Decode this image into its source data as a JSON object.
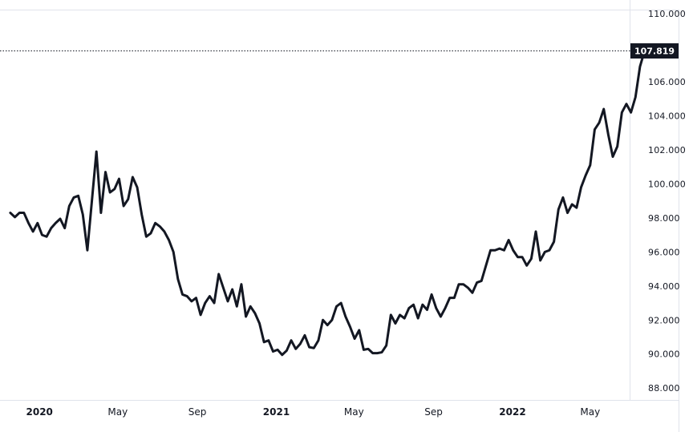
{
  "chart_data": {
    "type": "line",
    "title": "",
    "xlabel": "",
    "ylabel": "",
    "x_start": "2019-11",
    "x_end": "2022-07",
    "ylim": [
      87.3,
      110.2
    ],
    "y_ticks": [
      "88.000",
      "90.000",
      "92.000",
      "94.000",
      "96.000",
      "98.000",
      "100.000",
      "102.000",
      "104.000",
      "106.000",
      "110.000"
    ],
    "x_ticks": [
      {
        "label": "2020",
        "date": "2020-01",
        "year": true
      },
      {
        "label": "May",
        "date": "2020-05",
        "year": false
      },
      {
        "label": "Sep",
        "date": "2020-09",
        "year": false
      },
      {
        "label": "2021",
        "date": "2021-01",
        "year": true
      },
      {
        "label": "May",
        "date": "2021-05",
        "year": false
      },
      {
        "label": "Sep",
        "date": "2021-09",
        "year": false
      },
      {
        "label": "2022",
        "date": "2022-01",
        "year": true
      },
      {
        "label": "May",
        "date": "2022-05",
        "year": false
      }
    ],
    "last_value": 107.819,
    "last_value_label": "107.819",
    "line_color": "#131722",
    "grid": false,
    "series": [
      {
        "values": [
          [
            "2019-11-17",
            98.3
          ],
          [
            "2019-11-24",
            98.05
          ],
          [
            "2019-12-01",
            98.3
          ],
          [
            "2019-12-08",
            98.3
          ],
          [
            "2019-12-15",
            97.7
          ],
          [
            "2019-12-22",
            97.2
          ],
          [
            "2019-12-29",
            97.7
          ],
          [
            "2020-01-05",
            97.0
          ],
          [
            "2020-01-12",
            96.9
          ],
          [
            "2020-01-19",
            97.4
          ],
          [
            "2020-01-26",
            97.7
          ],
          [
            "2020-02-02",
            97.95
          ],
          [
            "2020-02-09",
            97.4
          ],
          [
            "2020-02-16",
            98.7
          ],
          [
            "2020-02-23",
            99.2
          ],
          [
            "2020-03-01",
            99.3
          ],
          [
            "2020-03-08",
            98.2
          ],
          [
            "2020-03-15",
            96.1
          ],
          [
            "2020-03-22",
            99.0
          ],
          [
            "2020-03-29",
            101.9
          ],
          [
            "2020-04-05",
            98.3
          ],
          [
            "2020-04-12",
            100.7
          ],
          [
            "2020-04-19",
            99.5
          ],
          [
            "2020-04-26",
            99.7
          ],
          [
            "2020-05-03",
            100.3
          ],
          [
            "2020-05-10",
            98.7
          ],
          [
            "2020-05-17",
            99.1
          ],
          [
            "2020-05-24",
            100.4
          ],
          [
            "2020-05-31",
            99.8
          ],
          [
            "2020-06-07",
            98.2
          ],
          [
            "2020-06-14",
            96.9
          ],
          [
            "2020-06-21",
            97.1
          ],
          [
            "2020-06-28",
            97.7
          ],
          [
            "2020-07-05",
            97.5
          ],
          [
            "2020-07-12",
            97.2
          ],
          [
            "2020-07-19",
            96.7
          ],
          [
            "2020-07-26",
            96.0
          ],
          [
            "2020-08-02",
            94.4
          ],
          [
            "2020-08-09",
            93.5
          ],
          [
            "2020-08-16",
            93.4
          ],
          [
            "2020-08-23",
            93.1
          ],
          [
            "2020-08-30",
            93.3
          ],
          [
            "2020-09-06",
            92.3
          ],
          [
            "2020-09-13",
            93.0
          ],
          [
            "2020-09-20",
            93.4
          ],
          [
            "2020-09-27",
            93.0
          ],
          [
            "2020-10-04",
            94.7
          ],
          [
            "2020-10-11",
            93.9
          ],
          [
            "2020-10-18",
            93.1
          ],
          [
            "2020-10-25",
            93.8
          ],
          [
            "2020-11-01",
            92.8
          ],
          [
            "2020-11-08",
            94.1
          ],
          [
            "2020-11-15",
            92.2
          ],
          [
            "2020-11-22",
            92.8
          ],
          [
            "2020-11-29",
            92.4
          ],
          [
            "2020-12-06",
            91.8
          ],
          [
            "2020-12-13",
            90.7
          ],
          [
            "2020-12-20",
            90.8
          ],
          [
            "2020-12-27",
            90.15
          ],
          [
            "2021-01-03",
            90.25
          ],
          [
            "2021-01-10",
            89.95
          ],
          [
            "2021-01-17",
            90.2
          ],
          [
            "2021-01-24",
            90.8
          ],
          [
            "2021-01-31",
            90.3
          ],
          [
            "2021-02-07",
            90.6
          ],
          [
            "2021-02-14",
            91.1
          ],
          [
            "2021-02-21",
            90.4
          ],
          [
            "2021-02-28",
            90.35
          ],
          [
            "2021-03-07",
            90.8
          ],
          [
            "2021-03-14",
            92.0
          ],
          [
            "2021-03-21",
            91.7
          ],
          [
            "2021-03-28",
            92.0
          ],
          [
            "2021-04-04",
            92.8
          ],
          [
            "2021-04-11",
            93.0
          ],
          [
            "2021-04-18",
            92.2
          ],
          [
            "2021-04-25",
            91.6
          ],
          [
            "2021-05-02",
            90.9
          ],
          [
            "2021-05-09",
            91.4
          ],
          [
            "2021-05-16",
            90.25
          ],
          [
            "2021-05-23",
            90.3
          ],
          [
            "2021-05-30",
            90.05
          ],
          [
            "2021-06-06",
            90.05
          ],
          [
            "2021-06-13",
            90.1
          ],
          [
            "2021-06-20",
            90.5
          ],
          [
            "2021-06-27",
            92.3
          ],
          [
            "2021-07-04",
            91.8
          ],
          [
            "2021-07-11",
            92.3
          ],
          [
            "2021-07-18",
            92.1
          ],
          [
            "2021-07-25",
            92.7
          ],
          [
            "2021-08-01",
            92.9
          ],
          [
            "2021-08-08",
            92.1
          ],
          [
            "2021-08-15",
            92.9
          ],
          [
            "2021-08-22",
            92.6
          ],
          [
            "2021-08-29",
            93.5
          ],
          [
            "2021-09-05",
            92.7
          ],
          [
            "2021-09-12",
            92.2
          ],
          [
            "2021-09-19",
            92.7
          ],
          [
            "2021-09-26",
            93.3
          ],
          [
            "2021-10-03",
            93.3
          ],
          [
            "2021-10-10",
            94.1
          ],
          [
            "2021-10-17",
            94.1
          ],
          [
            "2021-10-24",
            93.9
          ],
          [
            "2021-10-31",
            93.6
          ],
          [
            "2021-11-07",
            94.2
          ],
          [
            "2021-11-14",
            94.3
          ],
          [
            "2021-11-21",
            95.2
          ],
          [
            "2021-11-28",
            96.1
          ],
          [
            "2021-12-05",
            96.1
          ],
          [
            "2021-12-12",
            96.2
          ],
          [
            "2021-12-19",
            96.1
          ],
          [
            "2021-12-26",
            96.7
          ],
          [
            "2022-01-02",
            96.1
          ],
          [
            "2022-01-09",
            95.7
          ],
          [
            "2022-01-16",
            95.7
          ],
          [
            "2022-01-23",
            95.2
          ],
          [
            "2022-01-30",
            95.6
          ],
          [
            "2022-02-06",
            97.2
          ],
          [
            "2022-02-13",
            95.5
          ],
          [
            "2022-02-20",
            96.0
          ],
          [
            "2022-02-27",
            96.1
          ],
          [
            "2022-03-06",
            96.6
          ],
          [
            "2022-03-13",
            98.5
          ],
          [
            "2022-03-20",
            99.2
          ],
          [
            "2022-03-27",
            98.3
          ],
          [
            "2022-04-03",
            98.8
          ],
          [
            "2022-04-10",
            98.6
          ],
          [
            "2022-04-17",
            99.8
          ],
          [
            "2022-04-24",
            100.5
          ],
          [
            "2022-05-01",
            101.1
          ],
          [
            "2022-05-08",
            103.2
          ],
          [
            "2022-05-15",
            103.6
          ],
          [
            "2022-05-22",
            104.4
          ],
          [
            "2022-05-29",
            102.9
          ],
          [
            "2022-06-05",
            101.6
          ],
          [
            "2022-06-12",
            102.2
          ],
          [
            "2022-06-19",
            104.2
          ],
          [
            "2022-06-26",
            104.7
          ],
          [
            "2022-07-03",
            104.2
          ],
          [
            "2022-07-10",
            105.1
          ],
          [
            "2022-07-17",
            106.9
          ],
          [
            "2022-07-24",
            107.819
          ]
        ]
      }
    ]
  }
}
